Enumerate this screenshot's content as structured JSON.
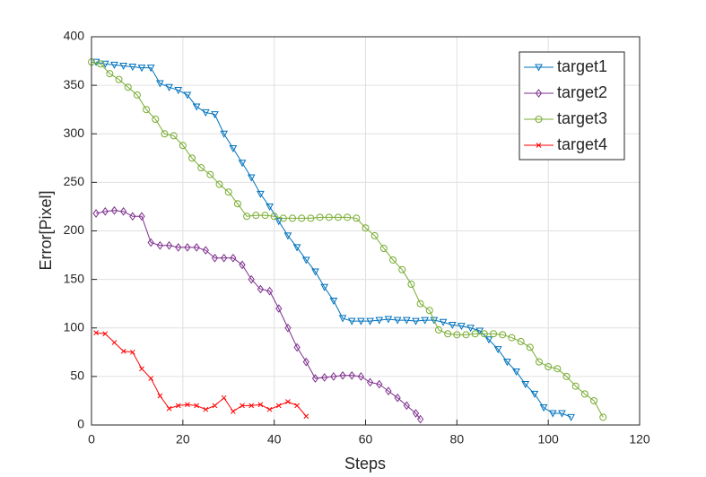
{
  "chart_data": {
    "type": "line",
    "xlabel": "Steps",
    "ylabel": "Error[Pixel]",
    "xlim": [
      0,
      120
    ],
    "ylim": [
      0,
      400
    ],
    "xticks": [
      0,
      20,
      40,
      60,
      80,
      100,
      120
    ],
    "yticks": [
      0,
      50,
      100,
      150,
      200,
      250,
      300,
      350,
      400
    ],
    "grid": true,
    "legend": "upper right",
    "series": [
      {
        "name": "target1",
        "color": "#0072bd",
        "marker": "triangle-down",
        "x": [
          1,
          3,
          5,
          7,
          9,
          11,
          13,
          15,
          17,
          19,
          21,
          23,
          25,
          27,
          29,
          31,
          33,
          35,
          37,
          39,
          41,
          43,
          45,
          47,
          49,
          51,
          53,
          55,
          57,
          59,
          61,
          63,
          65,
          67,
          69,
          71,
          73,
          75,
          77,
          79,
          81,
          83,
          85,
          87,
          89,
          91,
          93,
          95,
          97,
          99,
          101,
          103,
          105
        ],
        "values": [
          374,
          372,
          371,
          370,
          369,
          368,
          368,
          352,
          348,
          345,
          340,
          328,
          322,
          320,
          300,
          285,
          270,
          255,
          238,
          225,
          210,
          195,
          183,
          170,
          158,
          142,
          128,
          110,
          107,
          107,
          107,
          108,
          109,
          108,
          108,
          107,
          108,
          108,
          106,
          103,
          102,
          100,
          97,
          88,
          78,
          65,
          55,
          42,
          32,
          18,
          12,
          12,
          8
        ]
      },
      {
        "name": "target2",
        "color": "#7e2f8e",
        "marker": "diamond",
        "x": [
          1,
          3,
          5,
          7,
          9,
          11,
          13,
          15,
          17,
          19,
          21,
          23,
          25,
          27,
          29,
          31,
          33,
          35,
          37,
          39,
          41,
          43,
          45,
          47,
          49,
          51,
          53,
          55,
          57,
          59,
          61,
          63,
          65,
          67,
          69,
          71,
          72
        ],
        "values": [
          218,
          220,
          221,
          220,
          215,
          215,
          188,
          185,
          185,
          183,
          183,
          183,
          180,
          172,
          172,
          172,
          165,
          150,
          140,
          138,
          120,
          100,
          80,
          65,
          48,
          49,
          50,
          51,
          51,
          50,
          44,
          42,
          35,
          28,
          20,
          12,
          6
        ]
      },
      {
        "name": "target3",
        "color": "#77ac30",
        "marker": "circle",
        "x": [
          0,
          2,
          4,
          6,
          8,
          10,
          12,
          14,
          16,
          18,
          20,
          22,
          24,
          26,
          28,
          30,
          32,
          34,
          36,
          38,
          40,
          42,
          44,
          46,
          48,
          50,
          52,
          54,
          56,
          58,
          60,
          62,
          64,
          66,
          68,
          70,
          72,
          74,
          76,
          78,
          80,
          82,
          84,
          86,
          88,
          90,
          92,
          94,
          96,
          98,
          100,
          102,
          104,
          106,
          108,
          110,
          112
        ],
        "values": [
          374,
          372,
          362,
          356,
          348,
          340,
          325,
          315,
          300,
          298,
          288,
          275,
          265,
          258,
          248,
          240,
          228,
          215,
          216,
          216,
          215,
          213,
          213,
          213,
          213,
          214,
          214,
          214,
          214,
          213,
          203,
          195,
          182,
          170,
          160,
          145,
          125,
          118,
          98,
          94,
          93,
          93,
          94,
          94,
          94,
          93,
          90,
          86,
          80,
          65,
          60,
          58,
          50,
          40,
          32,
          25,
          8
        ]
      },
      {
        "name": "target4",
        "color": "#ff0000",
        "marker": "x",
        "x": [
          1,
          3,
          5,
          7,
          9,
          11,
          13,
          15,
          17,
          19,
          21,
          23,
          25,
          27,
          29,
          31,
          33,
          35,
          37,
          39,
          41,
          43,
          45,
          47
        ],
        "values": [
          95,
          94,
          85,
          76,
          75,
          58,
          48,
          30,
          17,
          20,
          21,
          20,
          16,
          20,
          28,
          14,
          20,
          20,
          21,
          16,
          20,
          24,
          20,
          9
        ]
      }
    ]
  }
}
